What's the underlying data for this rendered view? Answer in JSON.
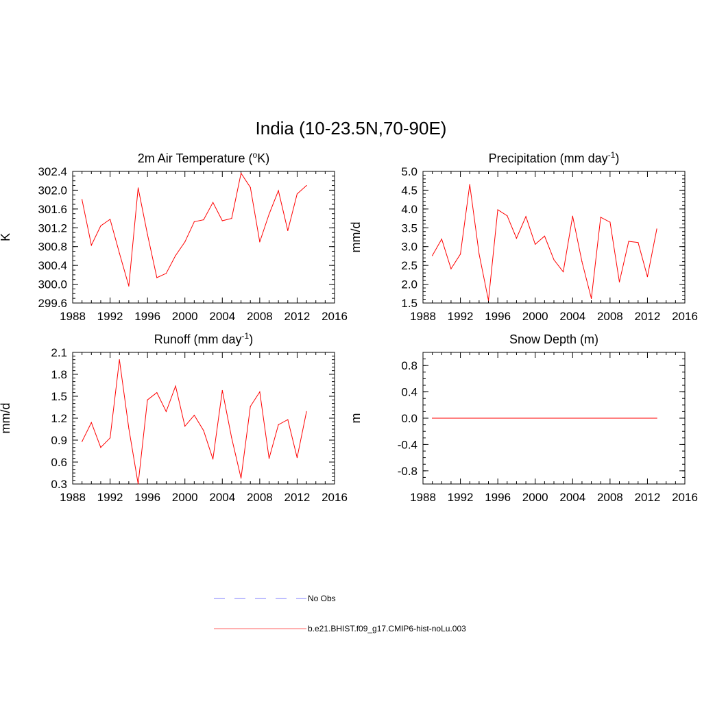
{
  "figure": {
    "title": "India (10-23.5N,70-90E)"
  },
  "legend": {
    "entries": [
      {
        "label": "No Obs",
        "color": "#9999ff",
        "dash": true
      },
      {
        "label": "b.e21.BHIST.f09_g17.CMIP6-hist-noLu.003",
        "color": "#ff8080",
        "dash": false
      }
    ]
  },
  "chart_data": [
    {
      "type": "line",
      "id": "temp",
      "title": "2m Air Temperature (",
      "title_sup": "o",
      "title_after": "K)",
      "ylabel": "K",
      "xlim": [
        1988,
        2016
      ],
      "ylim": [
        299.6,
        302.4
      ],
      "xticks": [
        1988,
        1992,
        1996,
        2000,
        2004,
        2008,
        2012,
        2016
      ],
      "yticks": [
        "299.6",
        "300.0",
        "300.4",
        "300.8",
        "301.2",
        "301.6",
        "302.0",
        "302.4"
      ],
      "yminor": 0.1,
      "series": [
        {
          "color": "#ff0000",
          "x": [
            1989,
            1990,
            1991,
            1992,
            1993,
            1994,
            1995,
            1996,
            1997,
            1998,
            1999,
            2000,
            2001,
            2002,
            2003,
            2004,
            2005,
            2006,
            2007,
            2008,
            2009,
            2010,
            2011,
            2012,
            2013
          ],
          "y": [
            301.8,
            300.83,
            301.24,
            301.38,
            300.66,
            299.96,
            302.05,
            301.06,
            300.14,
            300.23,
            300.61,
            300.9,
            301.33,
            301.37,
            301.74,
            301.35,
            301.4,
            302.36,
            302.06,
            300.9,
            301.49,
            301.99,
            301.14,
            301.92,
            302.1
          ]
        }
      ]
    },
    {
      "type": "line",
      "id": "precip",
      "title": "Precipitation (mm day",
      "title_sup": "-1",
      "title_after": ")",
      "ylabel": "mm/d",
      "xlim": [
        1988,
        2016
      ],
      "ylim": [
        1.5,
        5.0
      ],
      "xticks": [
        1988,
        1992,
        1996,
        2000,
        2004,
        2008,
        2012,
        2016
      ],
      "yticks": [
        "1.5",
        "2.0",
        "2.5",
        "3.0",
        "3.5",
        "4.0",
        "4.5",
        "5.0"
      ],
      "yminor": 0.1,
      "series": [
        {
          "color": "#ff0000",
          "x": [
            1989,
            1990,
            1991,
            1992,
            1993,
            1994,
            1995,
            1996,
            1997,
            1998,
            1999,
            2000,
            2001,
            2002,
            2003,
            2004,
            2005,
            2006,
            2007,
            2008,
            2009,
            2010,
            2011,
            2012,
            2013
          ],
          "y": [
            2.76,
            3.2,
            2.41,
            2.8,
            4.65,
            2.8,
            1.57,
            3.98,
            3.82,
            3.22,
            3.8,
            3.06,
            3.28,
            2.65,
            2.33,
            3.81,
            2.6,
            1.62,
            3.78,
            3.65,
            2.06,
            3.14,
            3.11,
            2.2,
            3.47
          ]
        }
      ]
    },
    {
      "type": "line",
      "id": "runoff",
      "title": "Runoff (mm day",
      "title_sup": "-1",
      "title_after": ")",
      "ylabel": "mm/d",
      "xlim": [
        1988,
        2016
      ],
      "ylim": [
        0.3,
        2.1
      ],
      "xticks": [
        1988,
        1992,
        1996,
        2000,
        2004,
        2008,
        2012,
        2016
      ],
      "yticks": [
        "0.3",
        "0.6",
        "0.9",
        "1.2",
        "1.5",
        "1.8",
        "2.1"
      ],
      "yminor": 0.05,
      "series": [
        {
          "color": "#ff0000",
          "x": [
            1989,
            1990,
            1991,
            1992,
            1993,
            1994,
            1995,
            1996,
            1997,
            1998,
            1999,
            2000,
            2001,
            2002,
            2003,
            2004,
            2005,
            2006,
            2007,
            2008,
            2009,
            2010,
            2011,
            2012,
            2013
          ],
          "y": [
            0.88,
            1.14,
            0.8,
            0.93,
            2.0,
            1.06,
            0.3,
            1.45,
            1.55,
            1.29,
            1.64,
            1.09,
            1.24,
            1.03,
            0.64,
            1.58,
            0.93,
            0.38,
            1.36,
            1.56,
            0.65,
            1.11,
            1.18,
            0.66,
            1.29
          ]
        }
      ]
    },
    {
      "type": "line",
      "id": "snow",
      "title": "Snow Depth (m)",
      "title_sup": "",
      "title_after": "",
      "ylabel": "m",
      "xlim": [
        1988,
        2016
      ],
      "ylim": [
        -1.0,
        1.0
      ],
      "xticks": [
        1988,
        1992,
        1996,
        2000,
        2004,
        2008,
        2012,
        2016
      ],
      "yticks": [
        "-0.8",
        "-0.4",
        "0.0",
        "0.4",
        "0.8"
      ],
      "ytick_values": [
        -0.8,
        -0.4,
        0.0,
        0.4,
        0.8
      ],
      "yminor": 0.1,
      "series": [
        {
          "color": "#ff0000",
          "x": [
            1989,
            2013
          ],
          "y": [
            0.0,
            0.0
          ]
        }
      ]
    }
  ]
}
